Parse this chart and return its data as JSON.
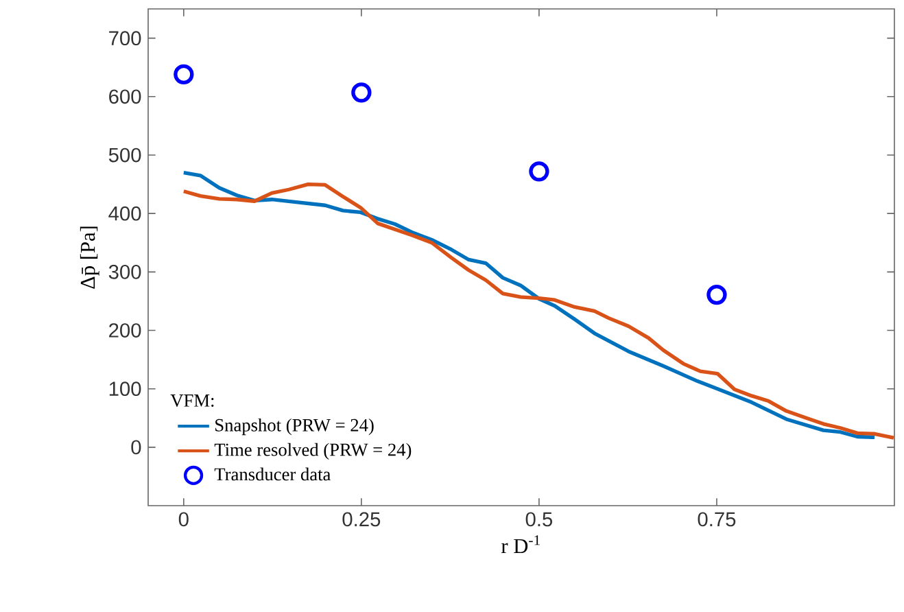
{
  "chart_data": {
    "type": "line",
    "xlabel": "r D$^{-1}$",
    "ylabel": "Δp̄ [Pa]",
    "legend_title": "VFM:",
    "legend": "bottom left",
    "xlim": [
      -0.05,
      1
    ],
    "ylim": [
      -100,
      750
    ],
    "xticks": [
      0,
      0.25,
      0.5,
      0.75
    ],
    "yticks": [
      0,
      100,
      200,
      300,
      400,
      500,
      600,
      700
    ],
    "series": [
      {
        "name": "Snapshot (PRW = 24)",
        "color": "#0072bd",
        "x": [
          0,
          0.0235,
          0.05,
          0.075,
          0.0997,
          0.124,
          0.154,
          0.199,
          0.224,
          0.249,
          0.273,
          0.297,
          0.321,
          0.349,
          0.377,
          0.401,
          0.425,
          0.449,
          0.474,
          0.5,
          0.522,
          0.55,
          0.578,
          0.626,
          0.675,
          0.723,
          0.751,
          0.799,
          0.848,
          0.9,
          0.924,
          0.948,
          0.972
        ],
        "values": [
          470,
          465,
          444,
          431,
          422,
          424,
          420,
          414,
          405,
          402,
          391,
          382,
          368,
          355,
          338,
          321,
          315,
          290,
          277,
          254,
          242,
          219,
          195,
          164,
          139,
          113,
          100,
          77,
          48,
          29,
          26,
          18,
          17
        ]
      },
      {
        "name": "Time resolved (PRW = 24)",
        "color": "#d95319",
        "x": [
          0,
          0.0235,
          0.05,
          0.075,
          0.0997,
          0.124,
          0.148,
          0.175,
          0.199,
          0.224,
          0.249,
          0.273,
          0.297,
          0.321,
          0.349,
          0.377,
          0.401,
          0.425,
          0.449,
          0.474,
          0.5,
          0.522,
          0.55,
          0.578,
          0.598,
          0.626,
          0.654,
          0.675,
          0.703,
          0.727,
          0.751,
          0.775,
          0.799,
          0.823,
          0.848,
          0.876,
          0.9,
          0.924,
          0.948,
          0.972,
          0.999
        ],
        "values": [
          438,
          430,
          425,
          424,
          421,
          435,
          441,
          450,
          449,
          429,
          410,
          383,
          373,
          363,
          350,
          324,
          303,
          286,
          263,
          257,
          255,
          252,
          240,
          233,
          221,
          207,
          187,
          166,
          143,
          130,
          126,
          99,
          88,
          79,
          62,
          50,
          40,
          33,
          24,
          23,
          16
        ]
      },
      {
        "name": "Transducer data",
        "type": "scatter",
        "marker": "circle",
        "color": "#0000ff",
        "x": [
          0,
          0.25,
          0.5,
          0.75
        ],
        "values": [
          638,
          607,
          472,
          261
        ]
      }
    ]
  }
}
